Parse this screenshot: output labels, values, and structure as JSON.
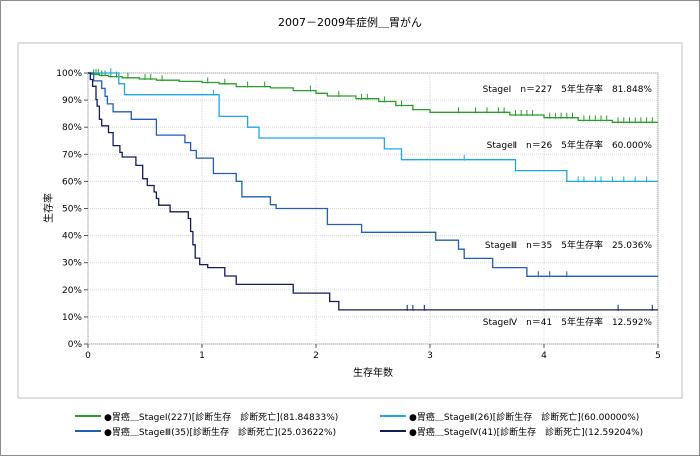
{
  "chart_data": {
    "type": "line",
    "title": "2007－2009年症例＿胃がん",
    "xlabel": "生存年数",
    "ylabel": "生存率",
    "xlim": [
      0,
      5
    ],
    "ylim": [
      0,
      100
    ],
    "x_ticks": [
      "0",
      "1",
      "2",
      "3",
      "4",
      "5"
    ],
    "y_ticks": [
      "0%",
      "10%",
      "20%",
      "30%",
      "40%",
      "50%",
      "60%",
      "70%",
      "80%",
      "90%",
      "100%"
    ],
    "grid": true,
    "series": [
      {
        "name": "Stage I",
        "color": "#2a9d2a",
        "label": "StageⅠ　n＝227　5年生存率　81.848%",
        "legend": "●胃癌＿StageⅠ(227)[診断生存　診断死亡](81.84833%)",
        "points": [
          [
            0,
            100
          ],
          [
            0.03,
            100
          ],
          [
            0.03,
            99.56
          ],
          [
            0.1,
            99.56
          ],
          [
            0.1,
            99.12
          ],
          [
            0.18,
            99.12
          ],
          [
            0.18,
            98.68
          ],
          [
            0.3,
            98.68
          ],
          [
            0.3,
            98.24
          ],
          [
            0.45,
            98.24
          ],
          [
            0.45,
            97.8
          ],
          [
            0.6,
            97.8
          ],
          [
            0.6,
            97.36
          ],
          [
            0.8,
            97.36
          ],
          [
            0.8,
            96.9
          ],
          [
            1.0,
            96.9
          ],
          [
            1.0,
            96.5
          ],
          [
            1.15,
            96.5
          ],
          [
            1.15,
            96.0
          ],
          [
            1.3,
            96.0
          ],
          [
            1.3,
            95.0
          ],
          [
            1.6,
            95.0
          ],
          [
            1.6,
            94.5
          ],
          [
            1.8,
            94.5
          ],
          [
            1.8,
            93.5
          ],
          [
            2.0,
            93.5
          ],
          [
            2.0,
            92.5
          ],
          [
            2.1,
            92.5
          ],
          [
            2.1,
            91.5
          ],
          [
            2.35,
            91.5
          ],
          [
            2.35,
            90.5
          ],
          [
            2.55,
            90.5
          ],
          [
            2.55,
            89.5
          ],
          [
            2.7,
            89.5
          ],
          [
            2.7,
            88.0
          ],
          [
            2.85,
            88.0
          ],
          [
            2.85,
            86.5
          ],
          [
            3.0,
            86.5
          ],
          [
            3.0,
            85.5
          ],
          [
            3.7,
            85.5
          ],
          [
            3.7,
            84.5
          ],
          [
            4.0,
            84.5
          ],
          [
            4.0,
            83.5
          ],
          [
            4.3,
            83.5
          ],
          [
            4.3,
            82.5
          ],
          [
            4.6,
            82.5
          ],
          [
            4.6,
            81.8
          ],
          [
            5.0,
            81.8
          ]
        ],
        "censor_x": [
          0.05,
          0.07,
          0.09,
          0.12,
          0.15,
          0.2,
          0.25,
          0.35,
          0.5,
          0.55,
          0.65,
          1.05,
          1.2,
          1.4,
          1.55,
          1.95,
          2.2,
          2.4,
          2.45,
          2.6,
          2.75,
          2.85,
          3.25,
          3.4,
          3.5,
          3.6,
          3.65,
          3.75,
          3.8,
          3.85,
          3.9,
          4.05,
          4.1,
          4.15,
          4.2,
          4.25,
          4.35,
          4.4,
          4.45,
          4.5,
          4.55,
          4.65,
          4.7,
          4.75,
          4.8,
          4.85,
          4.9,
          4.95
        ]
      },
      {
        "name": "Stage II",
        "color": "#1ea7e6",
        "label": "StageⅡ　n＝26　5年生存率　60.000%",
        "legend": "●胃癌＿StageⅡ(26)[診断生存　診断死亡](60.00000%)",
        "points": [
          [
            0,
            100
          ],
          [
            0.27,
            100
          ],
          [
            0.27,
            96.0
          ],
          [
            0.32,
            96.0
          ],
          [
            0.32,
            92.0
          ],
          [
            1.15,
            92.0
          ],
          [
            1.15,
            84.0
          ],
          [
            1.4,
            84.0
          ],
          [
            1.4,
            80.0
          ],
          [
            1.5,
            80.0
          ],
          [
            1.5,
            76.0
          ],
          [
            2.6,
            76.0
          ],
          [
            2.6,
            72.0
          ],
          [
            2.75,
            72.0
          ],
          [
            2.75,
            68.0
          ],
          [
            3.75,
            68.0
          ],
          [
            3.75,
            64.0
          ],
          [
            4.2,
            64.0
          ],
          [
            4.2,
            60.0
          ],
          [
            5.0,
            60.0
          ]
        ],
        "censor_x": [
          0.2,
          1.1,
          3.3,
          4.3,
          4.35,
          4.45,
          4.5,
          4.6,
          4.7,
          4.8,
          4.9
        ]
      },
      {
        "name": "Stage III",
        "color": "#1f5fb4",
        "label": "StageⅢ　n＝35　5年生存率　25.036%",
        "legend": "●胃癌＿StageⅢ(35)[診断生存　診断死亡](25.03622%)",
        "points": [
          [
            0,
            100
          ],
          [
            0.05,
            100
          ],
          [
            0.05,
            97.1
          ],
          [
            0.12,
            97.1
          ],
          [
            0.12,
            94.3
          ],
          [
            0.15,
            94.3
          ],
          [
            0.15,
            91.4
          ],
          [
            0.17,
            91.4
          ],
          [
            0.17,
            88.6
          ],
          [
            0.22,
            88.6
          ],
          [
            0.22,
            85.7
          ],
          [
            0.38,
            85.7
          ],
          [
            0.38,
            82.9
          ],
          [
            0.6,
            82.9
          ],
          [
            0.6,
            77.1
          ],
          [
            0.85,
            77.1
          ],
          [
            0.85,
            74.3
          ],
          [
            0.9,
            74.3
          ],
          [
            0.9,
            71.4
          ],
          [
            0.95,
            71.4
          ],
          [
            0.95,
            68.6
          ],
          [
            1.1,
            68.6
          ],
          [
            1.1,
            62.9
          ],
          [
            1.3,
            62.9
          ],
          [
            1.3,
            60.0
          ],
          [
            1.35,
            60.0
          ],
          [
            1.35,
            54.3
          ],
          [
            1.6,
            54.3
          ],
          [
            1.6,
            51.4
          ],
          [
            1.65,
            51.4
          ],
          [
            1.65,
            50.0
          ],
          [
            2.1,
            50.0
          ],
          [
            2.1,
            44.1
          ],
          [
            2.4,
            44.1
          ],
          [
            2.4,
            41.2
          ],
          [
            3.05,
            41.2
          ],
          [
            3.05,
            38.3
          ],
          [
            3.25,
            38.3
          ],
          [
            3.25,
            35.0
          ],
          [
            3.3,
            35.0
          ],
          [
            3.3,
            31.6
          ],
          [
            3.55,
            31.6
          ],
          [
            3.55,
            28.2
          ],
          [
            3.85,
            28.2
          ],
          [
            3.85,
            25.0
          ],
          [
            5.0,
            25.0
          ]
        ],
        "censor_x": [
          3.95,
          4.05,
          4.2
        ]
      },
      {
        "name": "Stage IV",
        "color": "#141b5a",
        "label": "StageⅣ　n＝41　5年生存率　12.592%",
        "legend": "●胃癌＿StageⅣ(41)[診断生存　診断死亡](12.59204%)",
        "points": [
          [
            0,
            100
          ],
          [
            0.02,
            100
          ],
          [
            0.02,
            97.6
          ],
          [
            0.04,
            97.6
          ],
          [
            0.04,
            95.1
          ],
          [
            0.07,
            95.1
          ],
          [
            0.07,
            90.2
          ],
          [
            0.08,
            90.2
          ],
          [
            0.08,
            87.8
          ],
          [
            0.1,
            87.8
          ],
          [
            0.1,
            82.9
          ],
          [
            0.12,
            82.9
          ],
          [
            0.12,
            80.5
          ],
          [
            0.18,
            80.5
          ],
          [
            0.18,
            78.0
          ],
          [
            0.22,
            78.0
          ],
          [
            0.22,
            73.2
          ],
          [
            0.28,
            73.2
          ],
          [
            0.28,
            70.7
          ],
          [
            0.3,
            70.7
          ],
          [
            0.3,
            69.0
          ],
          [
            0.42,
            69.0
          ],
          [
            0.42,
            65.9
          ],
          [
            0.48,
            65.9
          ],
          [
            0.48,
            61.0
          ],
          [
            0.52,
            61.0
          ],
          [
            0.52,
            58.5
          ],
          [
            0.58,
            58.5
          ],
          [
            0.58,
            56.1
          ],
          [
            0.6,
            56.1
          ],
          [
            0.6,
            53.7
          ],
          [
            0.62,
            53.7
          ],
          [
            0.62,
            51.2
          ],
          [
            0.72,
            51.2
          ],
          [
            0.72,
            48.8
          ],
          [
            0.88,
            48.8
          ],
          [
            0.88,
            46.3
          ],
          [
            0.9,
            46.3
          ],
          [
            0.9,
            41.5
          ],
          [
            0.92,
            41.5
          ],
          [
            0.92,
            36.6
          ],
          [
            0.94,
            36.6
          ],
          [
            0.94,
            31.7
          ],
          [
            0.98,
            31.7
          ],
          [
            0.98,
            29.3
          ],
          [
            1.05,
            29.3
          ],
          [
            1.05,
            28.2
          ],
          [
            1.2,
            28.2
          ],
          [
            1.2,
            25.1
          ],
          [
            1.3,
            25.1
          ],
          [
            1.3,
            22.0
          ],
          [
            1.8,
            22.0
          ],
          [
            1.8,
            18.8
          ],
          [
            2.12,
            18.8
          ],
          [
            2.12,
            15.7
          ],
          [
            2.2,
            15.7
          ],
          [
            2.2,
            12.6
          ],
          [
            5.0,
            12.6
          ]
        ],
        "censor_x": [
          2.8,
          2.85,
          2.95,
          4.65,
          4.95
        ]
      }
    ]
  }
}
